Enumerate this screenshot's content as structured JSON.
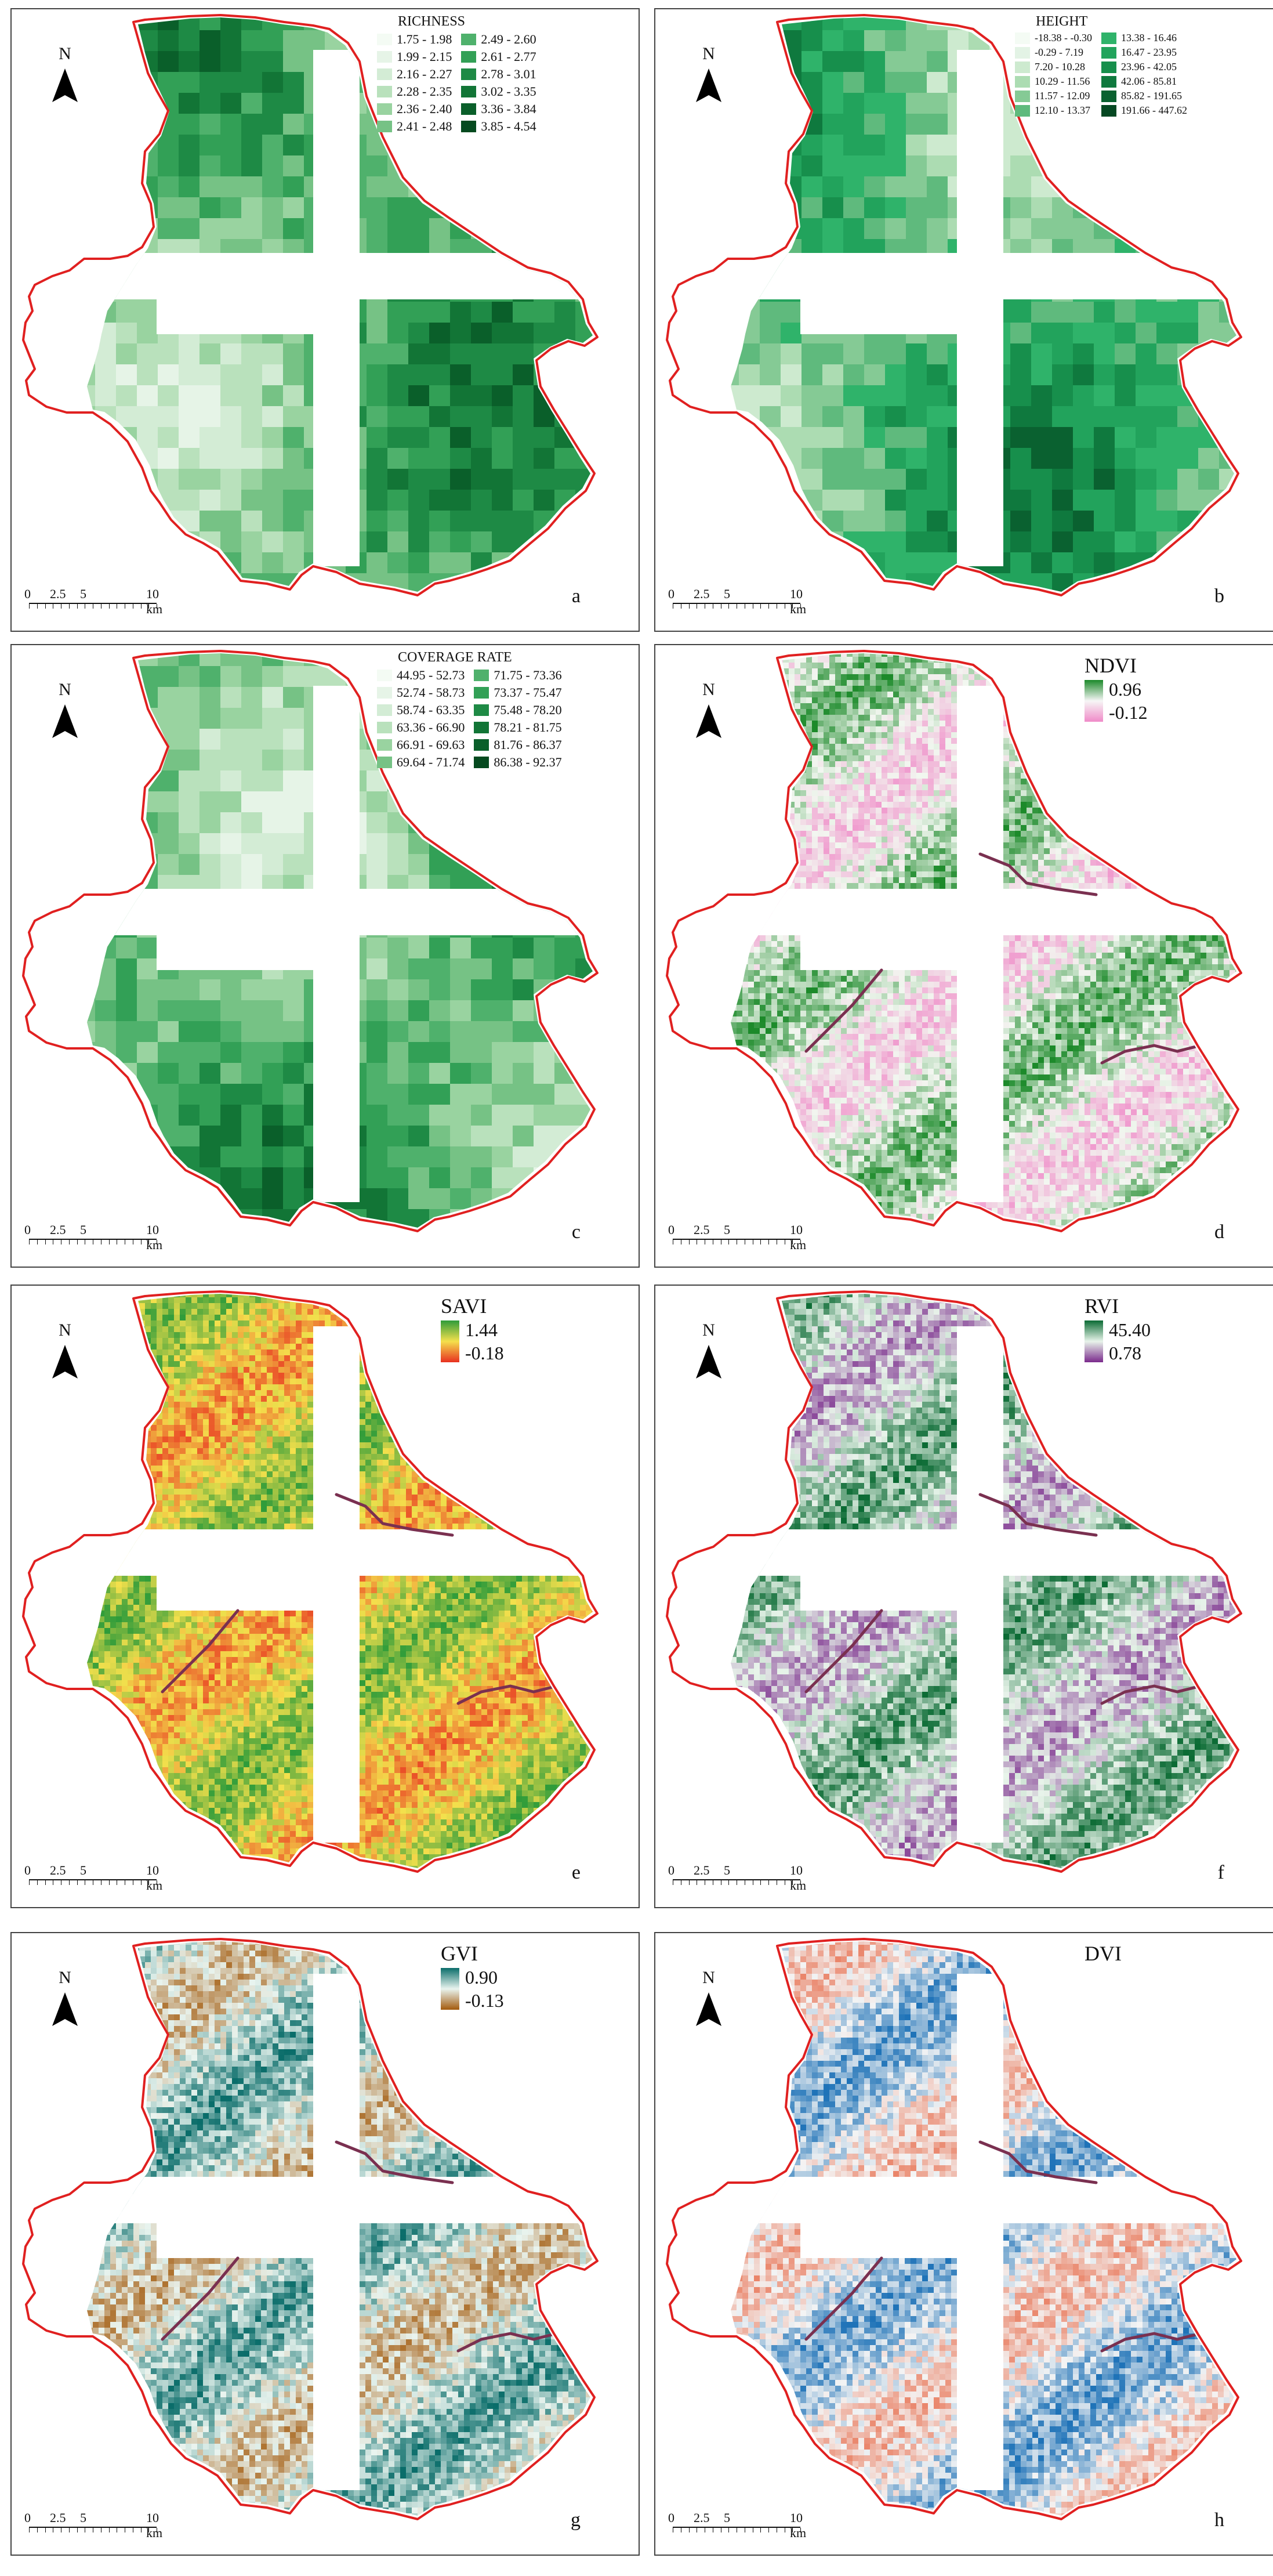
{
  "north_label": "N",
  "scale_labels": [
    "0",
    "2.5",
    "5",
    "10 km"
  ],
  "boundary_color": "#e02020",
  "panels": {
    "a": {
      "letter": "a",
      "legend_title": "RICHNESS",
      "legend_col1": [
        {
          "label": "1.75 - 1.98",
          "color": "#f4fbf4"
        },
        {
          "label": "1.99 - 2.15",
          "color": "#e6f4e7"
        },
        {
          "label": "2.16 - 2.27",
          "color": "#d3ecd5"
        },
        {
          "label": "2.28 - 2.35",
          "color": "#b9e1bc"
        },
        {
          "label": "2.36 - 2.40",
          "color": "#99d3a0"
        },
        {
          "label": "2.41 - 2.48",
          "color": "#76c285"
        }
      ],
      "legend_col2": [
        {
          "label": "2.49 - 2.60",
          "color": "#4fb16c"
        },
        {
          "label": "2.61 - 2.77",
          "color": "#32a056"
        },
        {
          "label": "2.78 - 3.01",
          "color": "#1e8a45"
        },
        {
          "label": "3.02 - 3.35",
          "color": "#127536"
        },
        {
          "label": "3.36 - 3.84",
          "color": "#0a5f2a"
        },
        {
          "label": "3.85 - 4.54",
          "color": "#054a1f"
        }
      ]
    },
    "b": {
      "letter": "b",
      "legend_title": "HEIGHT",
      "legend_col1": [
        {
          "label": "-18.38 - -0.30",
          "color": "#f4fbf4"
        },
        {
          "label": "-0.29 - 7.19",
          "color": "#e3f3e5"
        },
        {
          "label": "7.20 - 10.28",
          "color": "#cdeacf"
        },
        {
          "label": "10.29 - 11.56",
          "color": "#acdcb2"
        },
        {
          "label": "11.57 - 12.09",
          "color": "#85ca95"
        },
        {
          "label": "12.10 - 13.37",
          "color": "#5fba7d"
        }
      ],
      "legend_col2": [
        {
          "label": "13.38 - 16.46",
          "color": "#2fb36a"
        },
        {
          "label": "16.47 - 23.95",
          "color": "#22a35c"
        },
        {
          "label": "23.96 - 42.05",
          "color": "#178f4c"
        },
        {
          "label": "42.06 - 85.81",
          "color": "#0f793e"
        },
        {
          "label": "85.82 - 191.65",
          "color": "#0a6130"
        },
        {
          "label": "191.66 - 447.62",
          "color": "#054822"
        }
      ]
    },
    "c": {
      "letter": "c",
      "legend_title": "COVERAGE RATE",
      "legend_col1": [
        {
          "label": "44.95 - 52.73",
          "color": "#f4fbf4"
        },
        {
          "label": "52.74 - 58.73",
          "color": "#e6f4e7"
        },
        {
          "label": "58.74 - 63.35",
          "color": "#d3ecd5"
        },
        {
          "label": "63.36 - 66.90",
          "color": "#b9e1bc"
        },
        {
          "label": "66.91 - 69.63",
          "color": "#99d3a0"
        },
        {
          "label": "69.64 - 71.74",
          "color": "#76c285"
        }
      ],
      "legend_col2": [
        {
          "label": "71.75 - 73.36",
          "color": "#4fb16c"
        },
        {
          "label": "73.37 - 75.47",
          "color": "#32a056"
        },
        {
          "label": "75.48 - 78.20",
          "color": "#1e8a45"
        },
        {
          "label": "78.21 - 81.75",
          "color": "#127536"
        },
        {
          "label": "81.76 - 86.37",
          "color": "#0a5f2a"
        },
        {
          "label": "86.38 - 92.37",
          "color": "#054a1f"
        }
      ]
    },
    "d": {
      "letter": "d",
      "index_name": "NDVI",
      "max": "0.96",
      "min": "-0.12",
      "color_high": "#1c8a2a",
      "color_low": "#f08ac8"
    },
    "e": {
      "letter": "e",
      "index_name": "SAVI",
      "max": "1.44",
      "min": "-0.18",
      "color_high": "#2f9c3a",
      "color_mid": "#f4e04c",
      "color_low": "#e83020"
    },
    "f": {
      "letter": "f",
      "index_name": "RVI",
      "max": "45.40",
      "min": "0.78",
      "color_high": "#0b6b34",
      "color_mid": "#e8f4ea",
      "color_low": "#7a2a8c"
    },
    "g": {
      "letter": "g",
      "index_name": "GVI",
      "max": "0.90",
      "min": "-0.13",
      "color_high": "#0a6d6a",
      "color_mid": "#e9f4ef",
      "color_low": "#a35a0c"
    },
    "h": {
      "letter": "h",
      "index_name": "DVI",
      "max": "",
      "min": "",
      "color_high": "#1f73b8",
      "color_mid": "#f4f4f4",
      "color_low": "#e87050"
    }
  }
}
